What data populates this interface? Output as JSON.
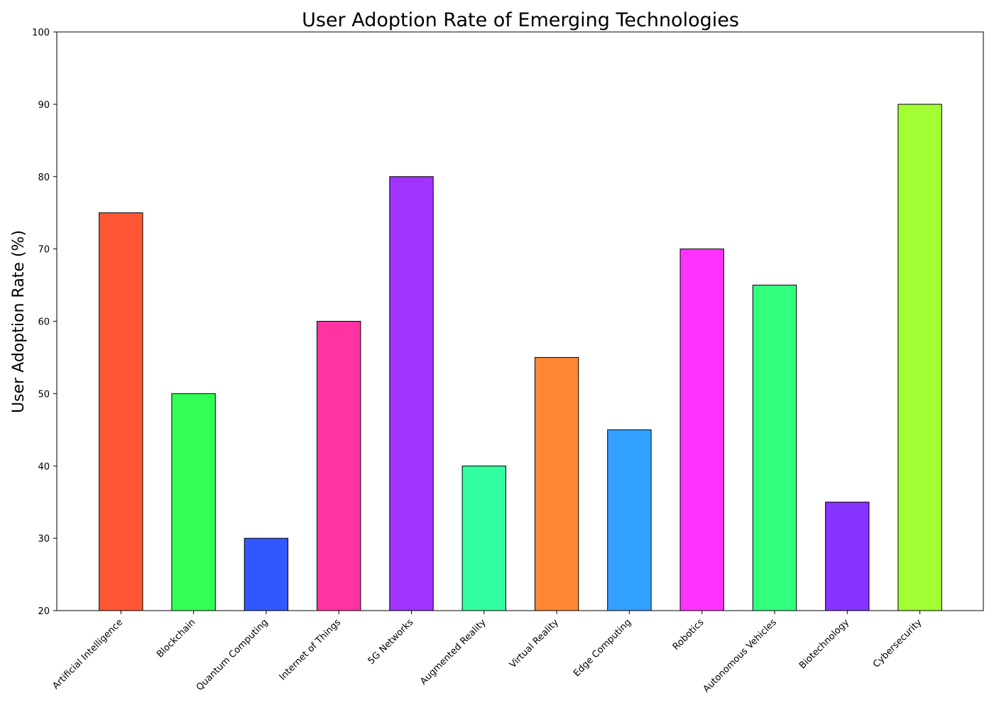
{
  "chart_data": {
    "type": "bar",
    "title": "User Adoption Rate of Emerging Technologies",
    "xlabel": "",
    "ylabel": "User Adoption Rate (%)",
    "ylim": [
      20,
      100
    ],
    "yticks": [
      20,
      30,
      40,
      50,
      60,
      70,
      80,
      90,
      100
    ],
    "grid": false,
    "categories": [
      "Artificial Intelligence",
      "Blockchain",
      "Quantum Computing",
      "Internet of Things",
      "5G Networks",
      "Augmented Reality",
      "Virtual Reality",
      "Edge Computing",
      "Robotics",
      "Autonomous Vehicles",
      "Biotechnology",
      "Cybersecurity"
    ],
    "values": [
      75,
      50,
      30,
      60,
      80,
      40,
      55,
      45,
      70,
      65,
      35,
      90
    ],
    "colors": [
      "#FF5733",
      "#33FF57",
      "#3357FF",
      "#FF33A1",
      "#A133FF",
      "#33FFA1",
      "#FF8633",
      "#33A1FF",
      "#FF33FF",
      "#33FF7F",
      "#8633FF",
      "#A1FF33"
    ]
  }
}
